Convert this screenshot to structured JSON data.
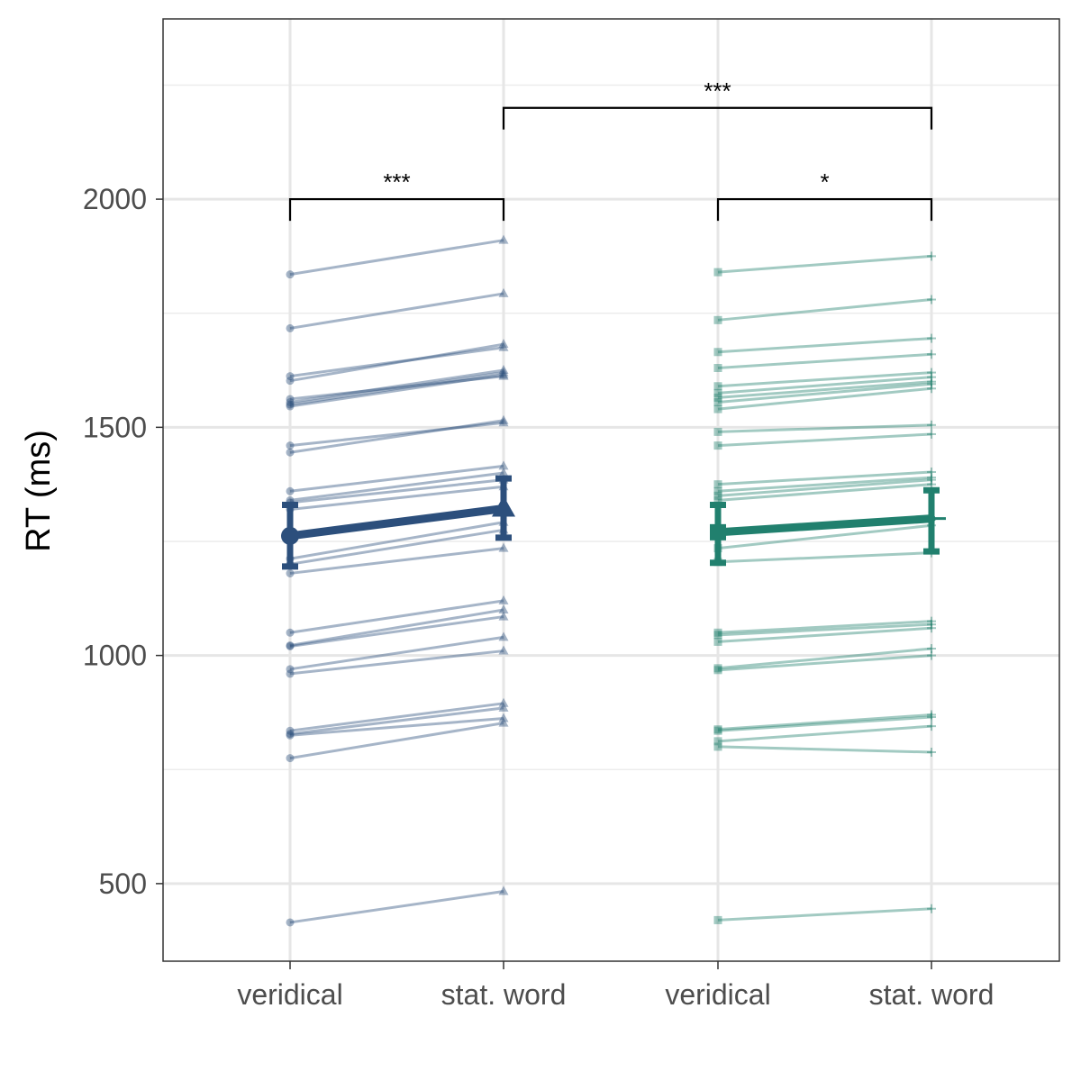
{
  "chart_data": {
    "type": "line",
    "ylabel": "RT (ms)",
    "xlabel": "",
    "ylim": [
      330,
      2395
    ],
    "y_ticks": [
      500,
      1000,
      1500,
      2000
    ],
    "x_categories": [
      "veridical",
      "stat. word",
      "veridical",
      "stat. word"
    ],
    "grid": true,
    "groups": [
      {
        "color": "#2c4f7c",
        "marker_first": "circle",
        "marker_second": "triangle",
        "mean": [
          1262,
          1322
        ],
        "error": [
          [
            1195,
            1330
          ],
          [
            1258,
            1388
          ]
        ],
        "participants": [
          [
            1835,
            1910
          ],
          [
            1717,
            1793
          ],
          [
            1612,
            1675
          ],
          [
            1602,
            1682
          ],
          [
            1562,
            1612
          ],
          [
            1555,
            1625
          ],
          [
            1550,
            1620
          ],
          [
            1546,
            1615
          ],
          [
            1460,
            1510
          ],
          [
            1445,
            1515
          ],
          [
            1360,
            1415
          ],
          [
            1340,
            1400
          ],
          [
            1335,
            1385
          ],
          [
            1320,
            1370
          ],
          [
            1212,
            1292
          ],
          [
            1200,
            1275
          ],
          [
            1180,
            1235
          ],
          [
            1050,
            1120
          ],
          [
            1022,
            1100
          ],
          [
            1020,
            1085
          ],
          [
            970,
            1040
          ],
          [
            960,
            1010
          ],
          [
            835,
            895
          ],
          [
            828,
            885
          ],
          [
            825,
            862
          ],
          [
            775,
            852
          ],
          [
            415,
            483
          ]
        ]
      },
      {
        "color": "#21806e",
        "marker_first": "square",
        "marker_second": "plus",
        "mean": [
          1270,
          1300
        ],
        "error": [
          [
            1203,
            1330
          ],
          [
            1228,
            1362
          ]
        ],
        "participants": [
          [
            1840,
            1875
          ],
          [
            1735,
            1780
          ],
          [
            1665,
            1695
          ],
          [
            1630,
            1660
          ],
          [
            1590,
            1620
          ],
          [
            1575,
            1610
          ],
          [
            1565,
            1600
          ],
          [
            1555,
            1595
          ],
          [
            1540,
            1585
          ],
          [
            1490,
            1505
          ],
          [
            1460,
            1485
          ],
          [
            1375,
            1402
          ],
          [
            1360,
            1390
          ],
          [
            1350,
            1385
          ],
          [
            1340,
            1375
          ],
          [
            1265,
            1298
          ],
          [
            1235,
            1285
          ],
          [
            1205,
            1225
          ],
          [
            1050,
            1075
          ],
          [
            1045,
            1068
          ],
          [
            1030,
            1060
          ],
          [
            972,
            1015
          ],
          [
            968,
            1000
          ],
          [
            838,
            870
          ],
          [
            835,
            865
          ],
          [
            812,
            845
          ],
          [
            800,
            788
          ],
          [
            420,
            445
          ]
        ]
      }
    ],
    "comparisons": [
      {
        "from": 0,
        "to": 1,
        "y": 2000,
        "label": "***"
      },
      {
        "from": 2,
        "to": 3,
        "y": 2000,
        "label": "*"
      },
      {
        "from": 1,
        "to": 3,
        "y": 2200,
        "label": "***"
      }
    ]
  }
}
